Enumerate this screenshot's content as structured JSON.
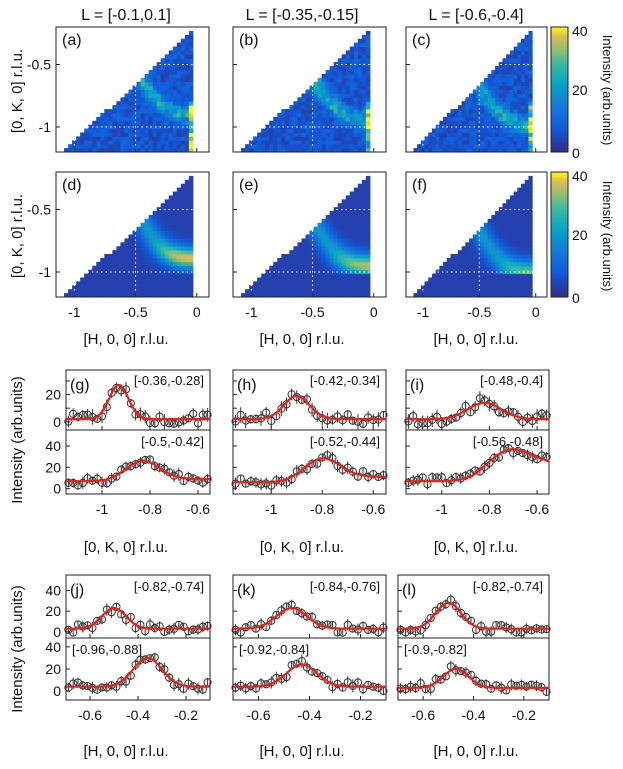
{
  "chart_data": {
    "type": "heatmap",
    "maps": {
      "column_titles": [
        "L = [-0.1,0.1]",
        "L = [-0.35,-0.15]",
        "L = [-0.6,-0.4]"
      ],
      "panel_labels_data": [
        "(a)",
        "(b)",
        "(c)"
      ],
      "panel_labels_fit": [
        "(d)",
        "(e)",
        "(f)"
      ],
      "xlabel": "[H, 0, 0] r.l.u.",
      "ylabel": "[0, K, 0] r.l.u.",
      "x_range": [
        -1.15,
        0.1
      ],
      "y_range": [
        -1.2,
        -0.2
      ],
      "x_ticks": [
        -1,
        -0.5,
        0
      ],
      "x_tick_labels": [
        "-1",
        "-0.5",
        "0"
      ],
      "y_ticks": [
        -0.5,
        -1
      ],
      "y_tick_labels": [
        "-0.5",
        "-1"
      ],
      "colorbar": {
        "label": "Intensity (arb.units)",
        "range": [
          0,
          40
        ],
        "ticks": [
          0,
          20,
          40
        ],
        "tick_labels": [
          "0",
          "20",
          "40"
        ]
      }
    },
    "cuts_K": {
      "panel_labels": [
        "(g)",
        "(h)",
        "(i)"
      ],
      "h_ranges_top": [
        "[-0.36,-0.28]",
        "[-0.42,-0.34]",
        "[-0.48,-0.4]"
      ],
      "h_ranges_bottom": [
        "[-0.5,-0.42]",
        "[-0.52,-0.44]",
        "[-0.56,-0.48]"
      ],
      "xlabel": "[0, K, 0] r.l.u.",
      "ylabel": "Intensity (arb.units)",
      "x_range": [
        -1.15,
        -0.55
      ],
      "x_ticks": [
        -1,
        -0.8,
        -0.6
      ],
      "x_tick_labels": [
        "-1",
        "-0.8",
        "-0.6"
      ],
      "top_y_range": [
        -6,
        38
      ],
      "top_y_ticks": [
        0,
        10,
        20,
        30
      ],
      "top_y_tick_labels": [
        "0",
        "",
        "20",
        ""
      ],
      "bottom_y_range": [
        -5,
        55
      ],
      "bottom_y_ticks": [
        0,
        20,
        40
      ],
      "bottom_y_tick_labels": [
        "0",
        "20",
        "40"
      ],
      "fit_peaks_top": [
        {
          "center": -0.93,
          "amp": 25,
          "width": 0.04,
          "bg": 2
        },
        {
          "center": -0.9,
          "amp": 17,
          "width": 0.05,
          "bg": 2
        },
        {
          "center": -0.82,
          "amp": 12,
          "width": 0.07,
          "bg": 2
        }
      ],
      "fit_peaks_bottom": [
        {
          "center": -0.83,
          "amp": 18,
          "width": 0.07,
          "bg_left": 7,
          "bg_right": 9
        },
        {
          "center": -0.8,
          "amp": 20,
          "width": 0.07,
          "bg_left": 6,
          "bg_right": 11
        },
        {
          "center": -0.72,
          "amp": 22,
          "width": 0.09,
          "bg_left": 7,
          "bg_right": 22
        }
      ]
    },
    "cuts_H": {
      "panel_labels": [
        "(j)",
        "(k)",
        "(l)"
      ],
      "k_ranges_top": [
        "[-0.82,-0.74]",
        "[-0.84,-0.76]",
        "[-0.82,-0.74]"
      ],
      "k_ranges_bottom": [
        "[-0.96,-0.88]",
        "[-0.92,-0.84]",
        "[-0.9,-0.82]"
      ],
      "xlabel": "[H, 0, 0] r.l.u.",
      "ylabel": "Intensity (arb.units)",
      "x_range": [
        -0.7,
        -0.1
      ],
      "x_ticks": [
        -0.6,
        -0.4,
        -0.2
      ],
      "x_tick_labels": [
        "-0.6",
        "-0.4",
        "-0.2"
      ],
      "top_y_range": [
        -6,
        55
      ],
      "top_y_ticks": [
        0,
        20,
        40
      ],
      "top_y_tick_labels": [
        "0",
        "20",
        "40"
      ],
      "bottom_y_range": [
        -8,
        48
      ],
      "bottom_y_ticks": [
        0,
        20,
        40
      ],
      "bottom_y_tick_labels": [
        "0",
        "20",
        "40"
      ],
      "fit_peaks_top": [
        {
          "center": -0.5,
          "amp": 20,
          "width": 0.05,
          "bg": 3
        },
        {
          "center": -0.47,
          "amp": 20,
          "width": 0.06,
          "bg": 3
        },
        {
          "center": -0.5,
          "amp": 25,
          "width": 0.05,
          "bg": 3
        }
      ],
      "fit_peaks_bottom": [
        {
          "center": -0.36,
          "amp": 26,
          "width": 0.06,
          "bg": 4
        },
        {
          "center": -0.43,
          "amp": 20,
          "width": 0.06,
          "bg": 4
        },
        {
          "center": -0.47,
          "amp": 17,
          "width": 0.05,
          "bg": 3
        }
      ]
    },
    "colors": {
      "fit": "#e8211b",
      "markers": "#333333",
      "grid": "#bbbbbb"
    }
  }
}
